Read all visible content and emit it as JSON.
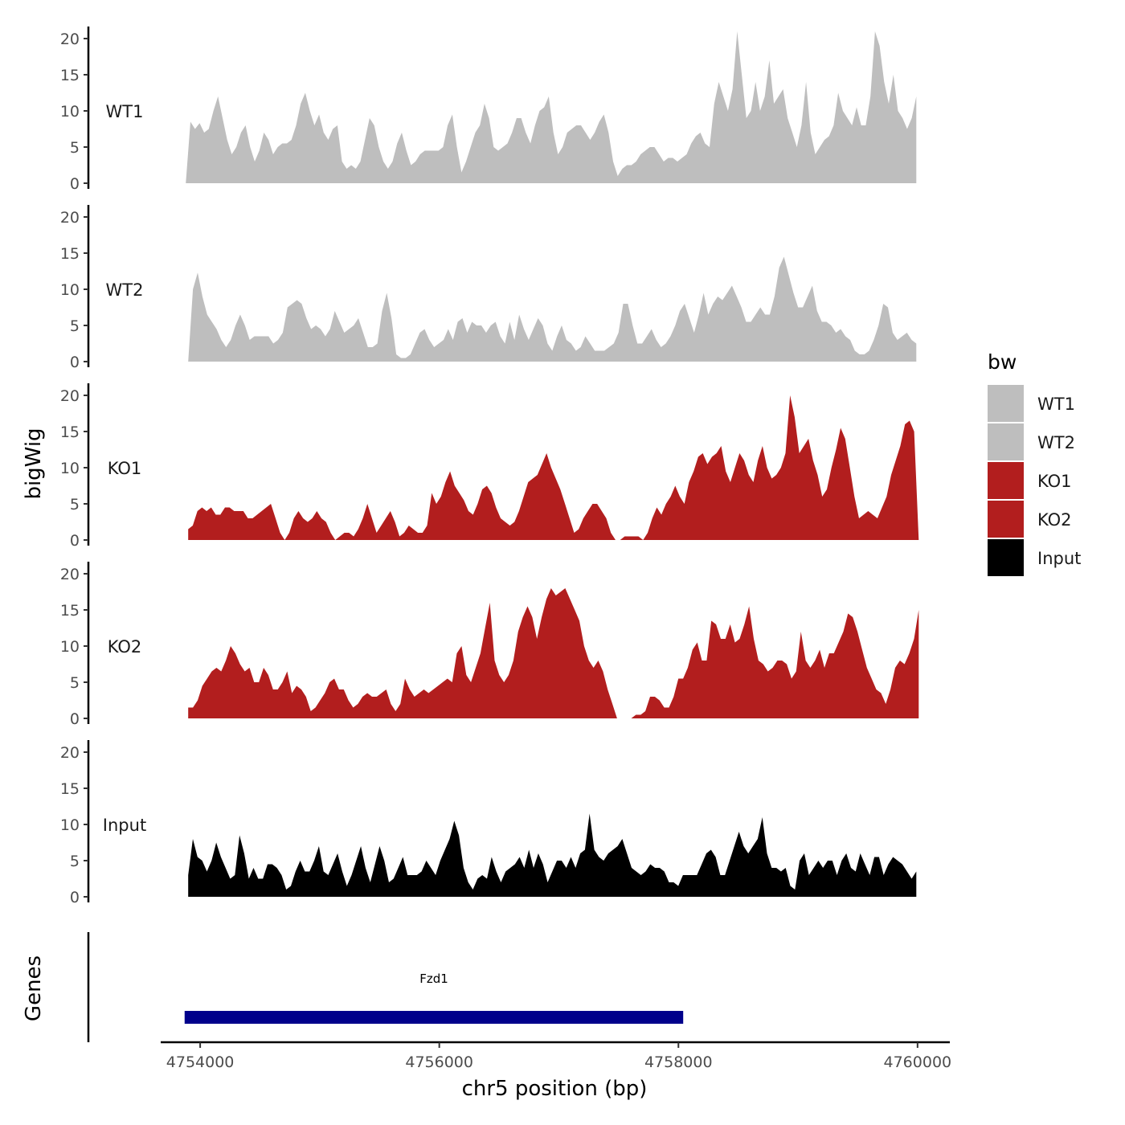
{
  "chart_data": {
    "type": "area",
    "title": "",
    "xlabel": "chr5 position (bp)",
    "ylabel": "bigWig",
    "genes_label": "Genes",
    "xlim": [
      4753670,
      4760270
    ],
    "ylim": [
      0,
      21
    ],
    "xticks": [
      4754000,
      4756000,
      4758000,
      4760000
    ],
    "xtick_labels": [
      "4754000",
      "4756000",
      "4758000",
      "4760000"
    ],
    "yticks": [
      0,
      5,
      10,
      15,
      20
    ],
    "ytick_labels": [
      "0",
      "5",
      "10",
      "15",
      "20"
    ],
    "legend": {
      "title": "bw",
      "position": "right",
      "entries": [
        {
          "name": "WT1",
          "color": "#bebebe"
        },
        {
          "name": "WT2",
          "color": "#bebebe"
        },
        {
          "name": "KO1",
          "color": "#b21e1e"
        },
        {
          "name": "KO2",
          "color": "#b21e1e"
        },
        {
          "name": "Input",
          "color": "#000000"
        }
      ]
    },
    "series": [
      {
        "name": "WT1",
        "color": "#bebebe",
        "x_start": 4753880,
        "x_end": 4759990,
        "values": [
          0,
          8.5,
          7.5,
          8.3,
          7,
          7.5,
          10,
          12,
          9,
          6,
          4,
          5,
          7,
          8,
          5,
          3,
          4.5,
          7,
          6,
          4,
          5,
          5.5,
          5.5,
          6,
          8,
          11,
          12.5,
          10,
          8,
          9.5,
          7,
          6,
          7.5,
          8,
          3,
          2,
          2.5,
          2,
          3,
          6,
          9,
          8,
          5,
          3,
          2,
          3,
          5.5,
          7,
          4.5,
          2.5,
          3,
          4,
          4.5,
          4.5,
          4.5,
          4.5,
          5,
          8,
          9.5,
          5,
          1.5,
          3,
          5,
          7,
          8,
          11,
          9,
          5,
          4.5,
          5,
          5.5,
          7,
          9,
          9,
          7,
          5.5,
          8,
          10,
          10.5,
          12,
          7,
          4,
          5,
          7,
          7.5,
          8,
          8,
          7,
          6,
          7,
          8.5,
          9.5,
          7,
          3,
          1,
          2,
          2.5,
          2.5,
          3,
          4,
          4.5,
          5,
          5,
          4,
          3,
          3.5,
          3.5,
          3,
          3.5,
          4,
          5.5,
          6.5,
          7,
          5.5,
          5,
          11,
          14,
          12,
          10,
          13,
          21,
          15,
          9,
          10,
          14,
          10,
          12,
          17,
          11,
          12,
          13,
          9,
          7,
          5,
          8,
          14,
          7,
          4,
          5,
          6,
          6.5,
          8,
          12.5,
          10,
          9,
          8,
          10.5,
          8,
          8,
          12,
          21,
          19,
          14,
          11,
          15,
          10,
          9,
          7.5,
          9,
          12
        ]
      },
      {
        "name": "WT2",
        "color": "#bebebe",
        "x_start": 4753900,
        "x_end": 4759990,
        "values": [
          0,
          10,
          12.3,
          9,
          6.5,
          5.5,
          4.5,
          3,
          2,
          3,
          5,
          6.5,
          5,
          3,
          3.5,
          3.5,
          3.5,
          3.5,
          2.5,
          3,
          4,
          7.5,
          8,
          8.5,
          8,
          6,
          4.5,
          5,
          4.5,
          3.5,
          4.5,
          7,
          5.5,
          4,
          4.5,
          5,
          6,
          4,
          2,
          2,
          2.5,
          7,
          9.5,
          6,
          1,
          0.5,
          0.5,
          1,
          2.5,
          4,
          4.5,
          3,
          2,
          2.5,
          3,
          4.5,
          3,
          5.5,
          6,
          4,
          5.5,
          5,
          5,
          4,
          5,
          5.5,
          3.5,
          2.5,
          5.5,
          3,
          6.5,
          4.5,
          3,
          4.5,
          6,
          5,
          2.5,
          1.5,
          3.5,
          5,
          3,
          2.5,
          1.5,
          2,
          3.5,
          2.5,
          1.5,
          1.5,
          1.5,
          2,
          2.5,
          4,
          8,
          8,
          5,
          2.5,
          2.5,
          3.5,
          4.5,
          3,
          2,
          2.5,
          3.5,
          5,
          7,
          8,
          6,
          4,
          6.5,
          9.5,
          6.5,
          8,
          9,
          8.5,
          9.5,
          10.5,
          9,
          7.5,
          5.5,
          5.5,
          6.5,
          7.5,
          6.5,
          6.5,
          9,
          13,
          14.5,
          12,
          9.5,
          7.5,
          7.5,
          9,
          10.5,
          7,
          5.5,
          5.5,
          5,
          4,
          4.5,
          3.5,
          3,
          1.5,
          1,
          1,
          1.5,
          3,
          5,
          8,
          7.5,
          4,
          3,
          3.5,
          4,
          3,
          2.5
        ]
      },
      {
        "name": "KO1",
        "color": "#b21e1e",
        "x_start": 4753900,
        "x_end": 4760010,
        "values": [
          1.5,
          2,
          4,
          4.5,
          4,
          4.5,
          3.5,
          3.5,
          4.5,
          4.5,
          4,
          4,
          4,
          3,
          3,
          3.5,
          4,
          4.5,
          5,
          3,
          1,
          0,
          1,
          3,
          4,
          3,
          2.5,
          3,
          4,
          3,
          2.5,
          1,
          0,
          0.5,
          1,
          1,
          0.5,
          1.5,
          3,
          5,
          3,
          1,
          2,
          3,
          4,
          2.5,
          0.5,
          1,
          2,
          1.5,
          1,
          1,
          2,
          6.5,
          5,
          6,
          8,
          9.5,
          7.5,
          6.5,
          5.5,
          4,
          3.5,
          5,
          7,
          7.5,
          6.5,
          4.5,
          3,
          2.5,
          2,
          2.5,
          4,
          6,
          8,
          8.5,
          9,
          10.5,
          12,
          10,
          8.5,
          7,
          5,
          3,
          1,
          1.5,
          3,
          4,
          5,
          5,
          4,
          3,
          1,
          0,
          0,
          0.5,
          0.5,
          0.5,
          0.5,
          0,
          1,
          3,
          4.5,
          3.5,
          5,
          6,
          7.5,
          6,
          5,
          8,
          9.5,
          11.5,
          12,
          10.5,
          11.5,
          12,
          13,
          9.5,
          8,
          10,
          12,
          11,
          9,
          8,
          11,
          13,
          10,
          8.5,
          9,
          10,
          12,
          20,
          17,
          12,
          13,
          14,
          11,
          9,
          6,
          7,
          10,
          12.5,
          15.5,
          14,
          10,
          6,
          3,
          3.5,
          4,
          3.5,
          3,
          4.5,
          6,
          9,
          11,
          13,
          16,
          16.5,
          15,
          0
        ]
      },
      {
        "name": "KO2",
        "color": "#b21e1e",
        "x_start": 4753900,
        "x_end": 4760010,
        "values": [
          1.5,
          1.5,
          2.5,
          4.5,
          5.5,
          6.5,
          7,
          6.5,
          8,
          10,
          9,
          7.5,
          6.5,
          7,
          5,
          5,
          7,
          6,
          4,
          4,
          5,
          6.5,
          3.5,
          4.5,
          4,
          3,
          1,
          1.5,
          2.5,
          3.5,
          5,
          5.5,
          4,
          4,
          2.5,
          1.5,
          2,
          3,
          3.5,
          3,
          3,
          3.5,
          4,
          2,
          1,
          2,
          5.5,
          4,
          3,
          3.5,
          4,
          3.5,
          4,
          4.5,
          5,
          5.5,
          5,
          9,
          10,
          6,
          5,
          7,
          9,
          12.5,
          16,
          8,
          6,
          5,
          6,
          8,
          12,
          14,
          15.5,
          14,
          11,
          14,
          16.5,
          18,
          17,
          17.5,
          18,
          16.5,
          15,
          13.5,
          10,
          8,
          7,
          8,
          6.5,
          4,
          2,
          0,
          0,
          0,
          0,
          0.5,
          0.5,
          1,
          3,
          3,
          2.5,
          1.5,
          1.5,
          3,
          5.5,
          5.5,
          7,
          9.5,
          10.5,
          8,
          8,
          13.5,
          13,
          11,
          11,
          13,
          10.5,
          11,
          13,
          15.5,
          11,
          8,
          7.5,
          6.5,
          7,
          8,
          8,
          7.5,
          5.5,
          6.5,
          12,
          8,
          7,
          8,
          9.5,
          7,
          9,
          9,
          10.5,
          12,
          14.5,
          14,
          12,
          9.5,
          7,
          5.5,
          4,
          3.5,
          2,
          4,
          7,
          8,
          7.5,
          9,
          11,
          15
        ]
      },
      {
        "name": "Input",
        "color": "#000000",
        "x_start": 4753900,
        "x_end": 4759990,
        "values": [
          3,
          8,
          5.5,
          5,
          3.5,
          5,
          7.5,
          5.5,
          4,
          2.5,
          3,
          8.5,
          6,
          2.5,
          4,
          2.5,
          2.5,
          4.5,
          4.5,
          4,
          3,
          1,
          1.5,
          3.5,
          5,
          3.5,
          3.5,
          5,
          7,
          3.5,
          3,
          4.5,
          6,
          3.5,
          1.5,
          3,
          5,
          7,
          4,
          2,
          4.5,
          7,
          5,
          2,
          2.5,
          4,
          5.5,
          3,
          3,
          3,
          3.5,
          5,
          4,
          3,
          5,
          6.5,
          8,
          10.5,
          8.5,
          4,
          2,
          1,
          2.5,
          3,
          2.5,
          5.5,
          3.5,
          2,
          3.5,
          4,
          4.5,
          5.5,
          4,
          6.5,
          4,
          6,
          4.5,
          2,
          3.5,
          5,
          5,
          4,
          5.5,
          4,
          6,
          6.5,
          11.5,
          6.5,
          5.5,
          5,
          6,
          6.5,
          7,
          8,
          6,
          4,
          3.5,
          3,
          3.5,
          4.5,
          4,
          4,
          3.5,
          2,
          2,
          1.5,
          3,
          3,
          3,
          3,
          4.5,
          6,
          6.5,
          5.5,
          3,
          3,
          5,
          7,
          9,
          7,
          6,
          7,
          8,
          11,
          6,
          4,
          4,
          3.5,
          4,
          1.5,
          1,
          5,
          6,
          3,
          4,
          5,
          4,
          5,
          5,
          3,
          5,
          6,
          4,
          3.5,
          6,
          4.5,
          3,
          5.5,
          5.5,
          3,
          4.5,
          5.5,
          5,
          4.5,
          3.5,
          2.5,
          3.5
        ]
      }
    ],
    "genes": [
      {
        "name": "Fzd1",
        "start": 4753870,
        "end": 4758040,
        "color": "#00008b"
      }
    ]
  }
}
